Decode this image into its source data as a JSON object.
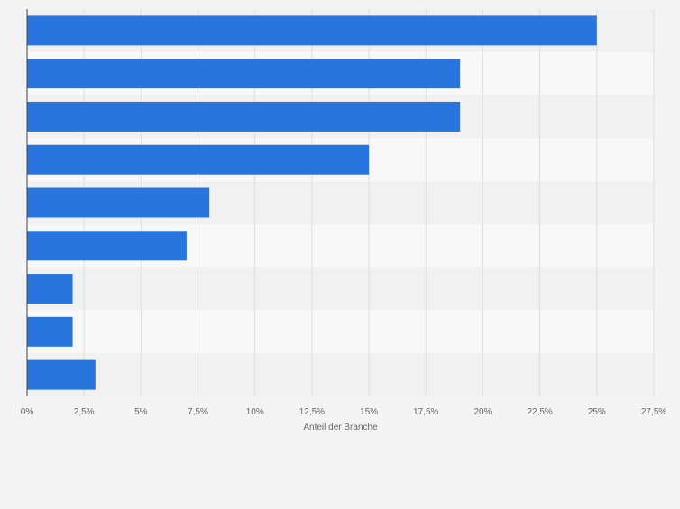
{
  "chart_data": {
    "type": "bar",
    "orientation": "horizontal",
    "categories": [
      "",
      "",
      "",
      "",
      "",
      "",
      "",
      "",
      ""
    ],
    "values": [
      25,
      19,
      19,
      15,
      8,
      7,
      2,
      2,
      3
    ],
    "xlabel": "Anteil der Branche",
    "xlim": [
      0,
      27.5
    ],
    "ticks": [
      "0%",
      "2,5%",
      "5%",
      "7,5%",
      "10%",
      "12,5%",
      "15%",
      "17,5%",
      "20%",
      "22,5%",
      "25%",
      "27,5%"
    ],
    "tick_values": [
      0,
      2.5,
      5,
      7.5,
      10,
      12.5,
      15,
      17.5,
      20,
      22.5,
      25,
      27.5
    ],
    "grid": true,
    "colors": {
      "bar": "#2876dd",
      "page_bg": "#f4f4f4",
      "band_dark": "#f1f1f1",
      "band_light": "#f8f8f8",
      "grid": "#dddddd",
      "axis": "#444444",
      "text": "#666666"
    }
  }
}
